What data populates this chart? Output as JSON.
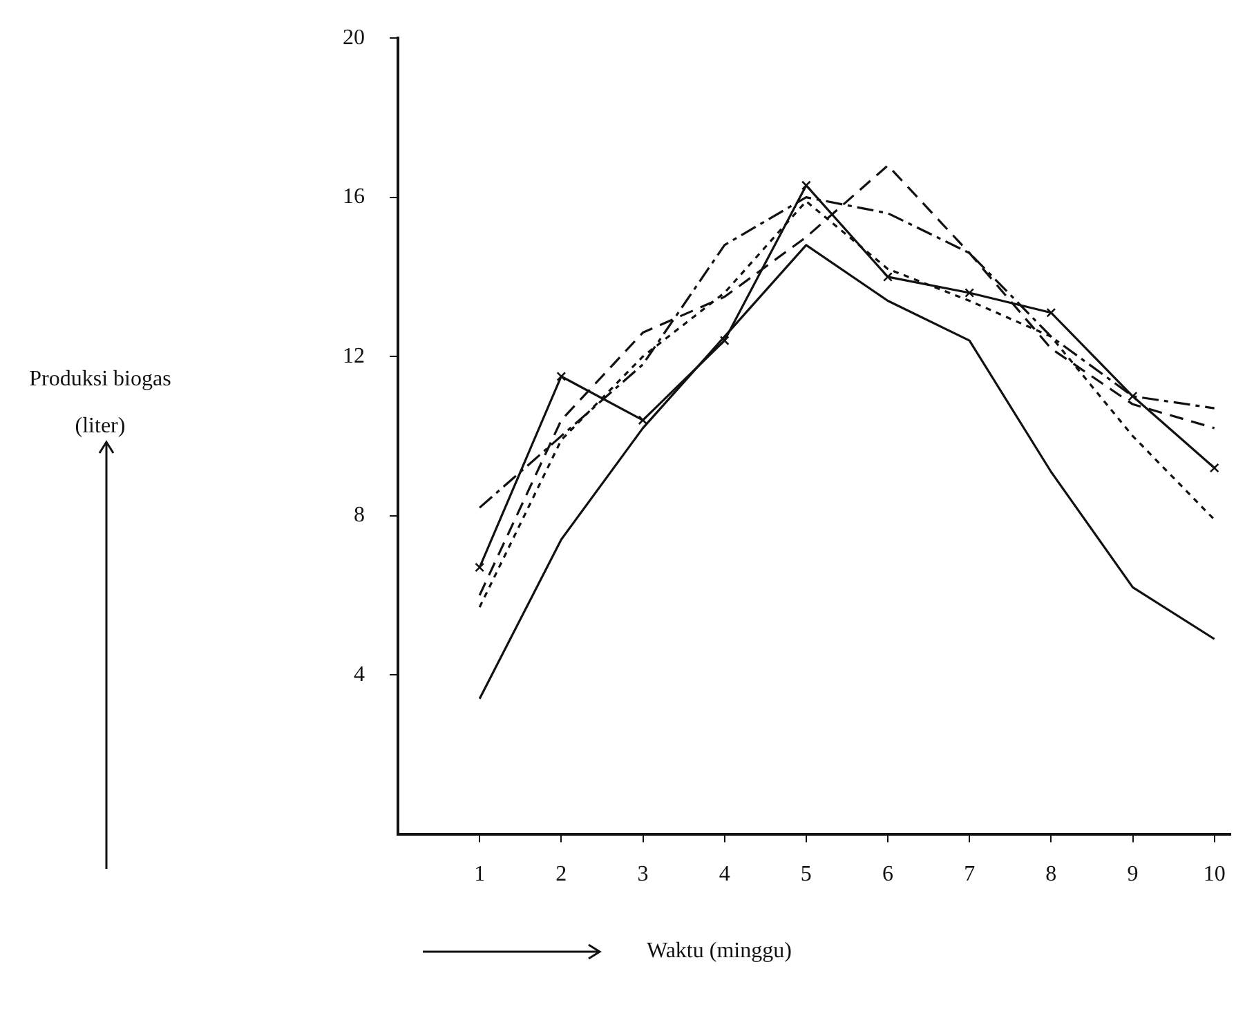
{
  "chart_data": {
    "type": "line",
    "xlabel": "Waktu (minggu)",
    "annotations": [
      "Produksi biogas (liter)"
    ],
    "x": [
      1,
      2,
      3,
      4,
      5,
      6,
      7,
      8,
      9,
      10
    ],
    "series": [
      {
        "color": "#111111",
        "line_style": "solid",
        "marker": "none",
        "values": [
          3.4,
          7.4,
          10.2,
          12.5,
          14.8,
          13.4,
          12.4,
          9.1,
          6.2,
          4.9
        ]
      },
      {
        "color": "#111111",
        "line_style": "solid",
        "marker": "cross",
        "values": [
          6.7,
          11.5,
          10.4,
          12.4,
          16.3,
          14.0,
          13.6,
          13.1,
          11.0,
          9.2
        ]
      },
      {
        "color": "#111111",
        "line_style": "dashdot",
        "marker": "none",
        "values": [
          8.2,
          10.0,
          11.8,
          14.8,
          16.0,
          15.6,
          14.6,
          12.5,
          11.0,
          10.7
        ]
      },
      {
        "color": "#111111",
        "line_style": "dashed",
        "marker": "none",
        "values": [
          6.0,
          10.4,
          12.6,
          13.5,
          15.0,
          16.8,
          14.6,
          12.2,
          10.8,
          10.2
        ]
      },
      {
        "color": "#111111",
        "line_style": "dotted",
        "marker": "none",
        "values": [
          5.7,
          9.9,
          12.0,
          13.6,
          15.9,
          14.2,
          13.4,
          12.5,
          10.0,
          7.9
        ]
      }
    ],
    "xlim": [
      0,
      10.2
    ],
    "xticks": [
      1,
      2,
      3,
      4,
      5,
      6,
      7,
      8,
      9,
      10
    ],
    "ylim": [
      0,
      20
    ],
    "yticks": [
      4,
      8,
      12,
      16,
      20
    ],
    "grid": false,
    "legend": false
  }
}
